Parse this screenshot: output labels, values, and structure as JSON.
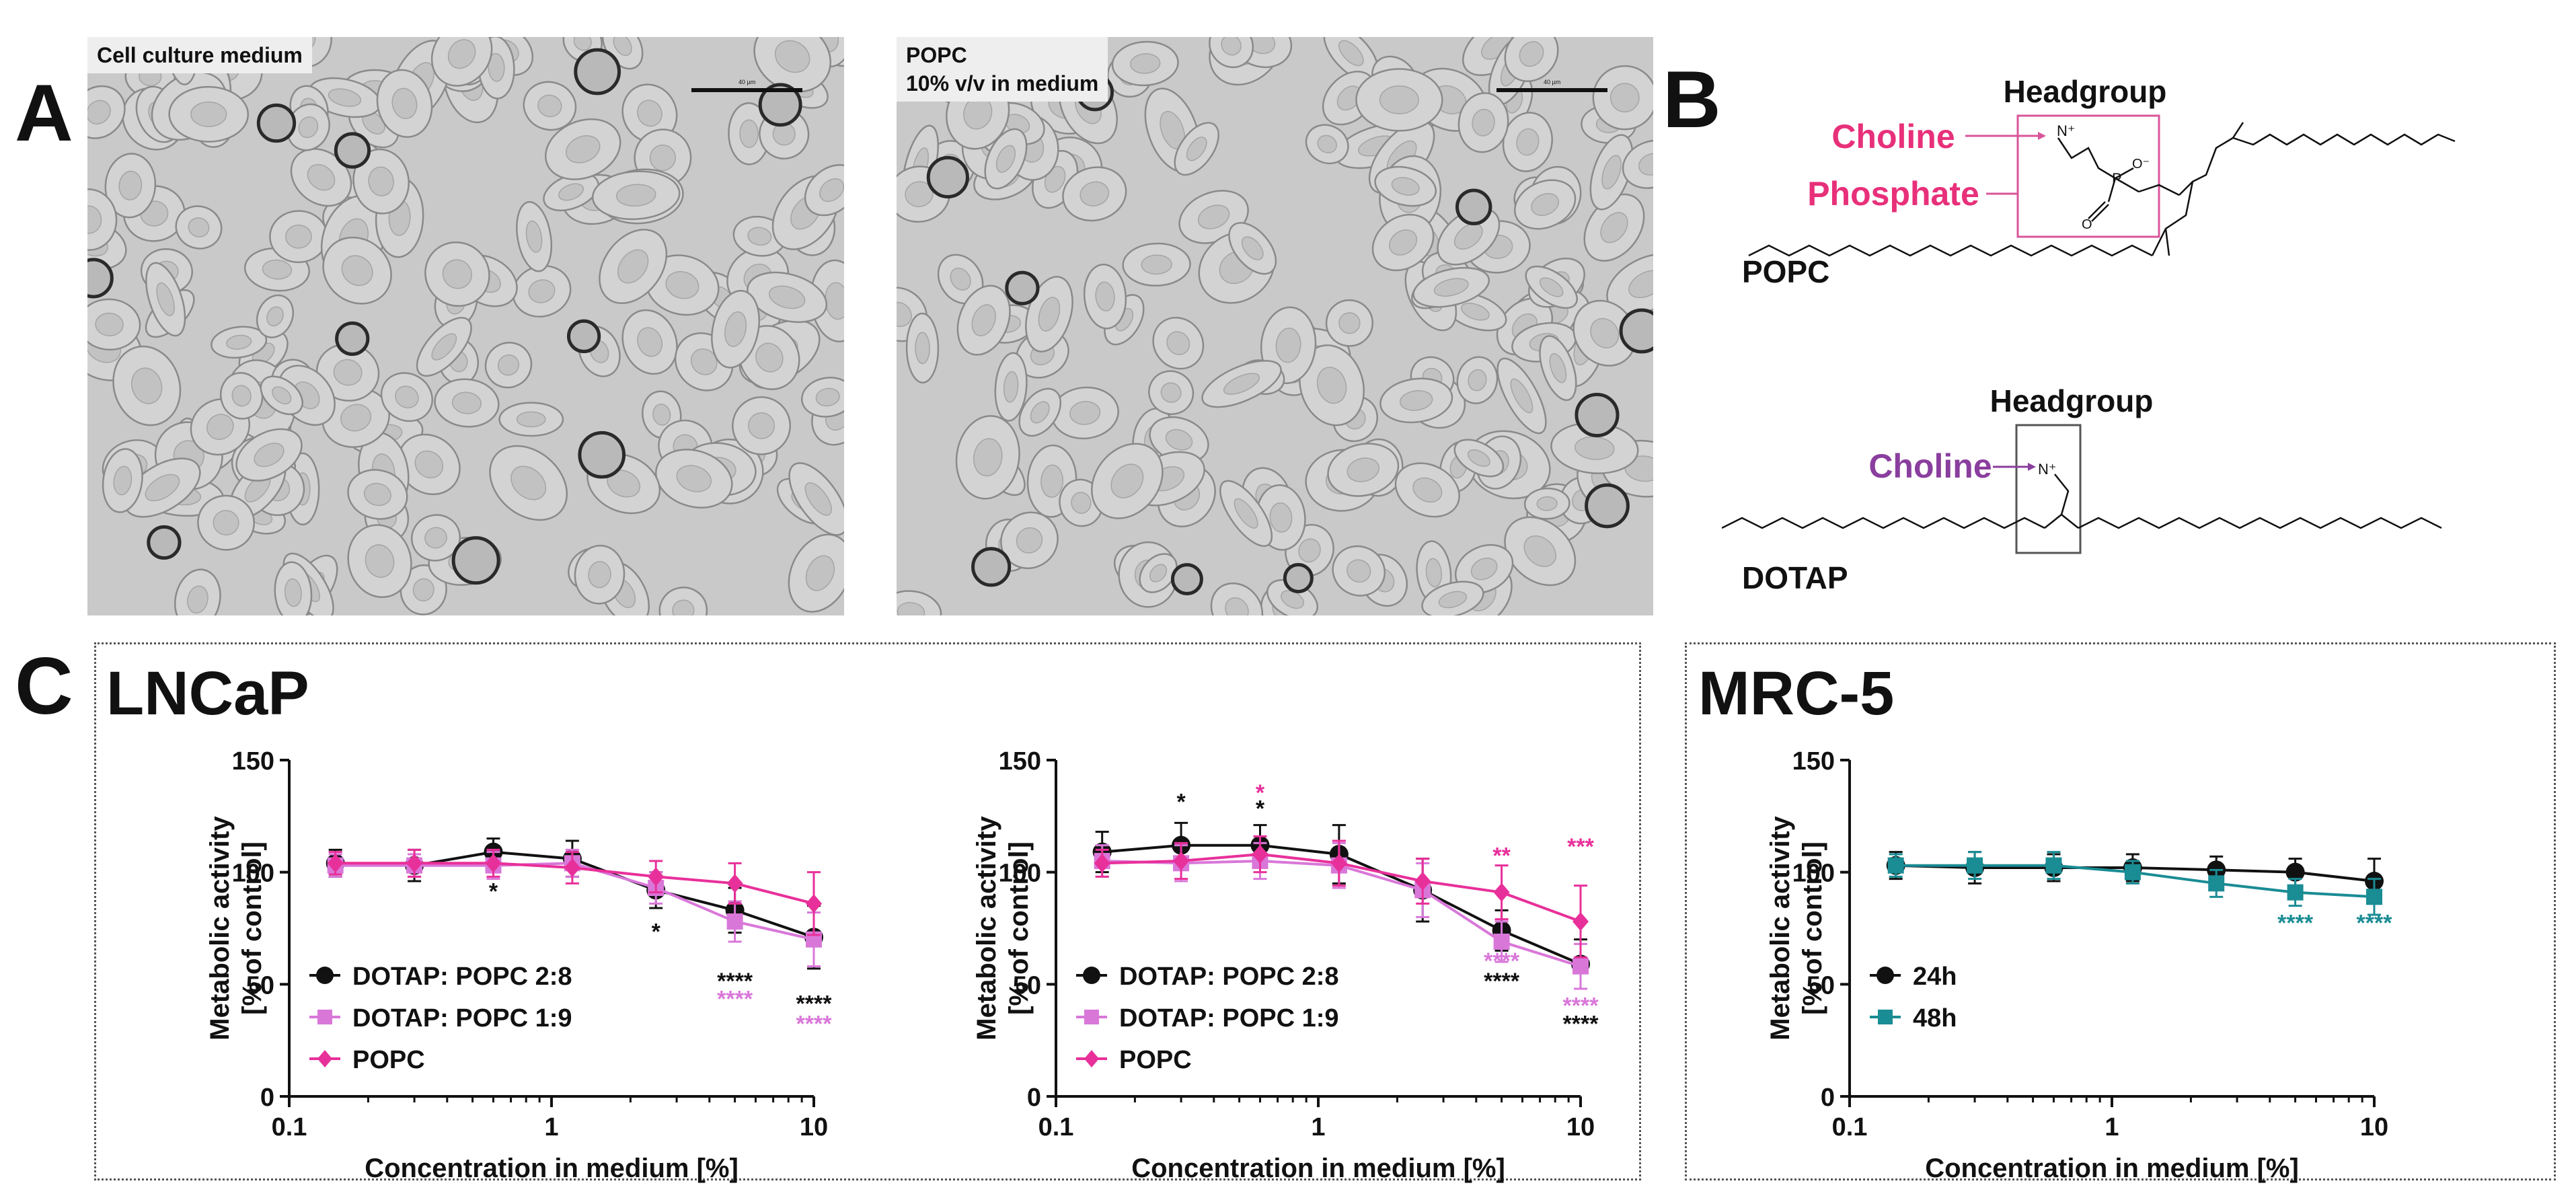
{
  "panels": {
    "A": {
      "label": "A",
      "images": [
        {
          "caption": "Cell culture medium",
          "scale_label": "40 µm"
        },
        {
          "caption": "POPC\n10% v/v in medium",
          "scale_label": "40 µm"
        }
      ]
    },
    "B": {
      "label": "B",
      "popc": {
        "name": "POPC",
        "headgroup": "Headgroup",
        "choline": "Choline",
        "phosphate": "Phosphate"
      },
      "dotap": {
        "name": "DOTAP",
        "headgroup": "Headgroup",
        "choline": "Choline"
      }
    },
    "C": {
      "label": "C",
      "group1": "LNCaP",
      "group2": "MRC-5"
    }
  },
  "colors": {
    "black_series": "#111111",
    "lilac_series": "#d977d9",
    "pink_series": "#e8309a",
    "teal_series": "#1a8c94",
    "choline_pink": "#e8307a",
    "choline_purple": "#8a3e9e"
  },
  "chart_data": [
    {
      "type": "line",
      "xlabel": "Concentration in medium [%]",
      "ylabel": "Metabolic activity\n[% of control]",
      "xscale": "log",
      "xlim": [
        0.1,
        10
      ],
      "ylim": [
        0,
        150
      ],
      "xticks": [
        "0.1",
        "1",
        "10"
      ],
      "yticks": [
        "0",
        "50",
        "100",
        "150"
      ],
      "legend": "bottom-left",
      "x": [
        0.15,
        0.3,
        0.6,
        1.2,
        2.5,
        5,
        10
      ],
      "series": [
        {
          "name": "DOTAP: POPC 2:8",
          "color": "#111111",
          "marker": "circle",
          "values": [
            104,
            103,
            109,
            106,
            92,
            83,
            71
          ],
          "err": [
            6,
            7,
            6,
            8,
            8,
            10,
            14
          ]
        },
        {
          "name": "DOTAP: POPC 1:9",
          "color": "#d977d9",
          "marker": "square",
          "values": [
            103,
            103,
            103,
            104,
            93,
            78,
            70
          ],
          "err": [
            5,
            5,
            6,
            6,
            7,
            9,
            12
          ]
        },
        {
          "name": "POPC",
          "color": "#e8309a",
          "marker": "diamond",
          "values": [
            104,
            104,
            104,
            102,
            98,
            95,
            86
          ],
          "err": [
            5,
            6,
            6,
            7,
            7,
            9,
            14
          ]
        }
      ],
      "annotations": [
        {
          "x": 0.6,
          "y": 88,
          "text": "*",
          "color": "#111111"
        },
        {
          "x": 2.5,
          "y": 70,
          "text": "*",
          "color": "#111111"
        },
        {
          "x": 5,
          "y": 48,
          "text": "****",
          "color": "#111111"
        },
        {
          "x": 5,
          "y": 40,
          "text": "****",
          "color": "#d977d9"
        },
        {
          "x": 10,
          "y": 38,
          "text": "****",
          "color": "#111111"
        },
        {
          "x": 10,
          "y": 29,
          "text": "****",
          "color": "#d977d9"
        }
      ]
    },
    {
      "type": "line",
      "xlabel": "Concentration in medium [%]",
      "ylabel": "Metabolic activity\n[% of control]",
      "xscale": "log",
      "xlim": [
        0.1,
        10
      ],
      "ylim": [
        0,
        150
      ],
      "xticks": [
        "0.1",
        "1",
        "10"
      ],
      "yticks": [
        "0",
        "50",
        "100",
        "150"
      ],
      "legend": "bottom-left",
      "x": [
        0.15,
        0.3,
        0.6,
        1.2,
        2.5,
        5,
        10
      ],
      "series": [
        {
          "name": "DOTAP: POPC 2:8",
          "color": "#111111",
          "marker": "circle",
          "values": [
            109,
            112,
            112,
            108,
            92,
            74,
            59
          ],
          "err": [
            9,
            10,
            9,
            13,
            14,
            9,
            11
          ]
        },
        {
          "name": "DOTAP: POPC 1:9",
          "color": "#d977d9",
          "marker": "square",
          "values": [
            105,
            104,
            105,
            103,
            92,
            69,
            58
          ],
          "err": [
            7,
            8,
            8,
            10,
            12,
            9,
            10
          ]
        },
        {
          "name": "POPC",
          "color": "#e8309a",
          "marker": "diamond",
          "values": [
            104,
            105,
            108,
            104,
            96,
            91,
            78
          ],
          "err": [
            6,
            8,
            8,
            10,
            10,
            12,
            16
          ]
        }
      ],
      "annotations": [
        {
          "x": 0.3,
          "y": 128,
          "text": "*",
          "color": "#111111"
        },
        {
          "x": 0.6,
          "y": 132,
          "text": "*",
          "color": "#e8309a"
        },
        {
          "x": 0.6,
          "y": 125,
          "text": "*",
          "color": "#111111"
        },
        {
          "x": 5,
          "y": 104,
          "text": "**",
          "color": "#e8309a"
        },
        {
          "x": 10,
          "y": 108,
          "text": "***",
          "color": "#e8309a"
        },
        {
          "x": 5,
          "y": 57,
          "text": "****",
          "color": "#d977d9"
        },
        {
          "x": 5,
          "y": 48,
          "text": "****",
          "color": "#111111"
        },
        {
          "x": 10,
          "y": 37,
          "text": "****",
          "color": "#d977d9"
        },
        {
          "x": 10,
          "y": 29,
          "text": "****",
          "color": "#111111"
        }
      ]
    },
    {
      "type": "line",
      "xlabel": "Concentration in medium [%]",
      "ylabel": "Metabolic activity\n[% of control]",
      "xscale": "log",
      "xlim": [
        0.1,
        10
      ],
      "ylim": [
        0,
        150
      ],
      "xticks": [
        "0.1",
        "1",
        "10"
      ],
      "yticks": [
        "0",
        "50",
        "100",
        "150"
      ],
      "legend": "bottom-left",
      "x": [
        0.15,
        0.3,
        0.6,
        1.2,
        2.5,
        5,
        10
      ],
      "series": [
        {
          "name": "24h",
          "color": "#111111",
          "marker": "circle",
          "values": [
            103,
            102,
            102,
            102,
            101,
            100,
            96
          ],
          "err": [
            6,
            7,
            6,
            6,
            6,
            6,
            10
          ]
        },
        {
          "name": "48h",
          "color": "#1a8c94",
          "marker": "square",
          "values": [
            103,
            103,
            103,
            100,
            95,
            91,
            89
          ],
          "err": [
            5,
            6,
            6,
            5,
            6,
            6,
            8
          ]
        }
      ],
      "annotations": [
        {
          "x": 5,
          "y": 74,
          "text": "****",
          "color": "#1a8c94"
        },
        {
          "x": 10,
          "y": 74,
          "text": "****",
          "color": "#1a8c94"
        }
      ]
    }
  ]
}
